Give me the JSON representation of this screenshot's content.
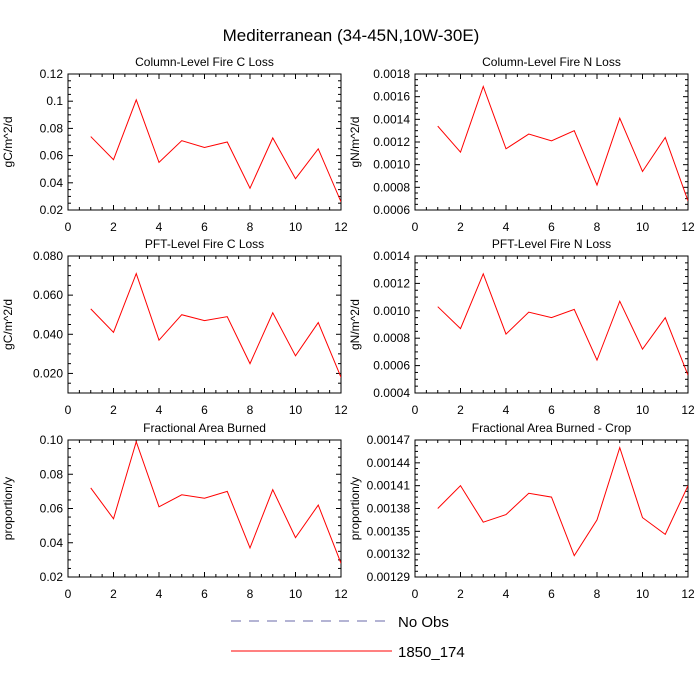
{
  "title": "Mediterranean (34-45N,10W-30E)",
  "colors": {
    "model_line": "#ff0000",
    "obs_line": "#6a6aa8",
    "axis": "#000000"
  },
  "legend": {
    "entries": [
      {
        "label": "No Obs",
        "style": "dashed",
        "color": "#6a6aa8"
      },
      {
        "label": "1850_174",
        "style": "solid",
        "color": "#ff0000"
      }
    ]
  },
  "chart_data": [
    {
      "type": "line",
      "title": "Column-Level Fire C Loss",
      "ylabel": "gC/m^2/d",
      "xlabel": "",
      "xlim": [
        0,
        12
      ],
      "ylim": [
        0.02,
        0.12
      ],
      "xticks": [
        0,
        2,
        4,
        6,
        8,
        10,
        12
      ],
      "yticks": [
        0.02,
        0.04,
        0.06,
        0.08,
        0.1,
        0.12
      ],
      "ytick_labels": [
        "0.02",
        "0.04",
        "0.06",
        "0.08",
        "0.1",
        "0.12"
      ],
      "x": [
        1,
        2,
        3,
        4,
        5,
        6,
        7,
        8,
        9,
        10,
        11,
        12
      ],
      "series": [
        {
          "name": "1850_174",
          "values": [
            0.074,
            0.057,
            0.101,
            0.055,
            0.071,
            0.066,
            0.07,
            0.036,
            0.073,
            0.043,
            0.065,
            0.026
          ]
        }
      ]
    },
    {
      "type": "line",
      "title": "Column-Level Fire N Loss",
      "ylabel": "gN/m^2/d",
      "xlabel": "",
      "xlim": [
        0,
        12
      ],
      "ylim": [
        0.0006,
        0.0018
      ],
      "xticks": [
        0,
        2,
        4,
        6,
        8,
        10,
        12
      ],
      "yticks": [
        0.0006,
        0.0008,
        0.001,
        0.0012,
        0.0014,
        0.0016,
        0.0018
      ],
      "ytick_labels": [
        "0.0006",
        "0.0008",
        "0.0010",
        "0.0012",
        "0.0014",
        "0.0016",
        "0.0018"
      ],
      "x": [
        1,
        2,
        3,
        4,
        5,
        6,
        7,
        8,
        9,
        10,
        11,
        12
      ],
      "series": [
        {
          "name": "1850_174",
          "values": [
            0.00134,
            0.00111,
            0.00169,
            0.00114,
            0.00127,
            0.00121,
            0.0013,
            0.00082,
            0.00141,
            0.00094,
            0.00124,
            0.00068
          ]
        }
      ]
    },
    {
      "type": "line",
      "title": "PFT-Level Fire C Loss",
      "ylabel": "gC/m^2/d",
      "xlabel": "",
      "xlim": [
        0,
        12
      ],
      "ylim": [
        0.01,
        0.08
      ],
      "xticks": [
        0,
        2,
        4,
        6,
        8,
        10,
        12
      ],
      "yticks": [
        0.02,
        0.04,
        0.06,
        0.08
      ],
      "ytick_labels": [
        "0.020",
        "0.040",
        "0.060",
        "0.080"
      ],
      "x": [
        1,
        2,
        3,
        4,
        5,
        6,
        7,
        8,
        9,
        10,
        11,
        12
      ],
      "series": [
        {
          "name": "1850_174",
          "values": [
            0.053,
            0.041,
            0.071,
            0.037,
            0.05,
            0.047,
            0.049,
            0.025,
            0.051,
            0.029,
            0.046,
            0.018
          ]
        }
      ]
    },
    {
      "type": "line",
      "title": "PFT-Level Fire N Loss",
      "ylabel": "gN/m^2/d",
      "xlabel": "",
      "xlim": [
        0,
        12
      ],
      "ylim": [
        0.0004,
        0.0014
      ],
      "xticks": [
        0,
        2,
        4,
        6,
        8,
        10,
        12
      ],
      "yticks": [
        0.0004,
        0.0006,
        0.0008,
        0.001,
        0.0012,
        0.0014
      ],
      "ytick_labels": [
        "0.0004",
        "0.0006",
        "0.0008",
        "0.0010",
        "0.0012",
        "0.0014"
      ],
      "x": [
        1,
        2,
        3,
        4,
        5,
        6,
        7,
        8,
        9,
        10,
        11,
        12
      ],
      "series": [
        {
          "name": "1850_174",
          "values": [
            0.00103,
            0.00087,
            0.00127,
            0.00083,
            0.00099,
            0.00095,
            0.00101,
            0.00064,
            0.00107,
            0.00072,
            0.00095,
            0.00053
          ]
        }
      ]
    },
    {
      "type": "line",
      "title": "Fractional Area Burned",
      "ylabel": "proportion/y",
      "xlabel": "",
      "xlim": [
        0,
        12
      ],
      "ylim": [
        0.02,
        0.1
      ],
      "xticks": [
        0,
        2,
        4,
        6,
        8,
        10,
        12
      ],
      "yticks": [
        0.02,
        0.04,
        0.06,
        0.08,
        0.1
      ],
      "ytick_labels": [
        "0.02",
        "0.04",
        "0.06",
        "0.08",
        "0.10"
      ],
      "x": [
        1,
        2,
        3,
        4,
        5,
        6,
        7,
        8,
        9,
        10,
        11,
        12
      ],
      "series": [
        {
          "name": "1850_174",
          "values": [
            0.072,
            0.054,
            0.099,
            0.061,
            0.068,
            0.066,
            0.07,
            0.037,
            0.071,
            0.043,
            0.062,
            0.028
          ]
        }
      ]
    },
    {
      "type": "line",
      "title": "Fractional Area Burned - Crop",
      "ylabel": "proportion/y",
      "xlabel": "",
      "xlim": [
        0,
        12
      ],
      "ylim": [
        0.00129,
        0.00147
      ],
      "xticks": [
        0,
        2,
        4,
        6,
        8,
        10,
        12
      ],
      "yticks": [
        0.00129,
        0.00132,
        0.00135,
        0.00138,
        0.00141,
        0.00144,
        0.00147
      ],
      "ytick_labels": [
        "0.00129",
        "0.00132",
        "0.00135",
        "0.00138",
        "0.00141",
        "0.00144",
        "0.00147"
      ],
      "x": [
        1,
        2,
        3,
        4,
        5,
        6,
        7,
        8,
        9,
        10,
        11,
        12
      ],
      "series": [
        {
          "name": "1850_174",
          "values": [
            0.00138,
            0.00141,
            0.001362,
            0.001372,
            0.0014,
            0.001395,
            0.001318,
            0.001365,
            0.00146,
            0.001368,
            0.001346,
            0.00141
          ]
        }
      ]
    }
  ]
}
